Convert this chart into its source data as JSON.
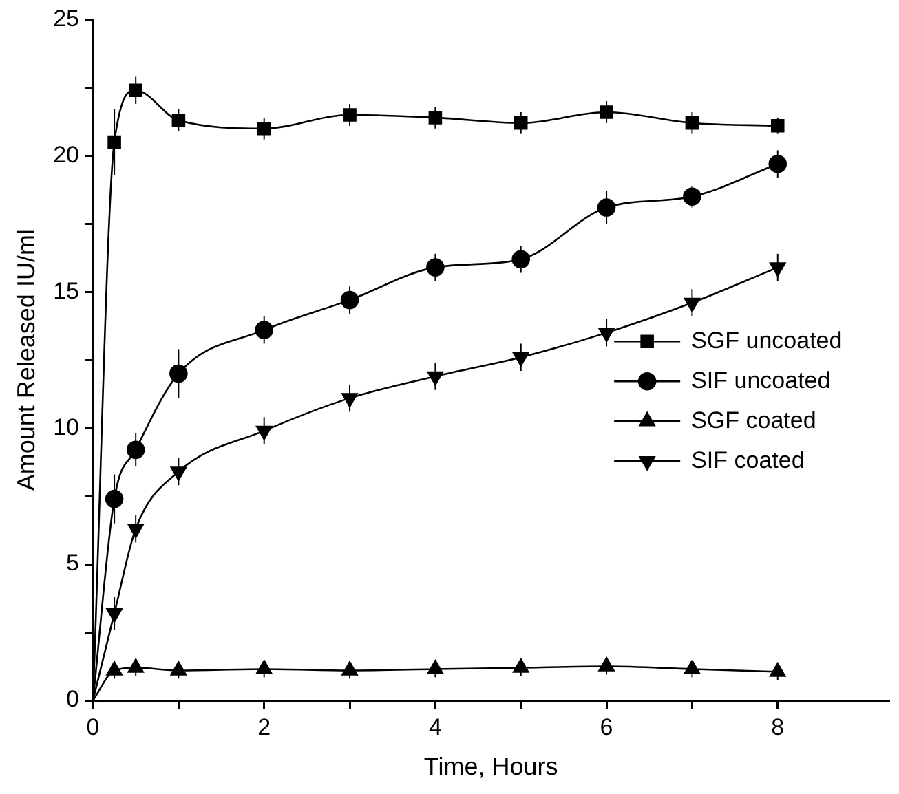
{
  "chart_data": {
    "type": "line",
    "xlabel": "Time, Hours",
    "ylabel": "Amount Released IU/ml",
    "x": [
      0,
      0.25,
      0.5,
      1,
      2,
      3,
      4,
      5,
      6,
      7,
      8
    ],
    "xlim": [
      0,
      9.3
    ],
    "xticks": [
      0,
      {
        "value": 1,
        "label": null
      },
      2,
      {
        "value": 3,
        "label": null
      },
      4,
      {
        "value": 5,
        "label": null
      },
      6,
      {
        "value": 7,
        "label": null
      },
      8
    ],
    "ylim": [
      0,
      25
    ],
    "yticks": [
      0,
      {
        "value": 2.5,
        "label": null
      },
      5,
      {
        "value": 7.5,
        "label": null
      },
      10,
      {
        "value": 12.5,
        "label": null
      },
      15,
      {
        "value": 17.5,
        "label": null
      },
      20,
      {
        "value": 22.5,
        "label": null
      },
      25
    ],
    "grid": false,
    "legend": "right",
    "line_style": "solid",
    "series": [
      {
        "name": "SGF uncoated",
        "color": "#000000",
        "marker": "square",
        "values": [
          0,
          20.5,
          22.4,
          21.3,
          21.0,
          21.5,
          21.4,
          21.2,
          21.6,
          21.2,
          21.1
        ],
        "errors": [
          null,
          1.2,
          0.5,
          0.4,
          0.4,
          0.4,
          0.4,
          0.4,
          0.4,
          0.4,
          0.3
        ]
      },
      {
        "name": "SIF uncoated",
        "color": "#000000",
        "marker": "circle",
        "values": [
          0,
          7.4,
          9.2,
          12.0,
          13.6,
          14.7,
          15.9,
          16.2,
          18.1,
          18.5,
          19.7
        ],
        "errors": [
          null,
          0.9,
          0.6,
          0.9,
          0.5,
          0.5,
          0.5,
          0.5,
          0.6,
          0.4,
          0.5
        ]
      },
      {
        "name": "SGF coated",
        "color": "#000000",
        "marker": "triangle",
        "values": [
          0,
          1.1,
          1.2,
          1.1,
          1.15,
          1.1,
          1.15,
          1.2,
          1.25,
          1.15,
          1.05
        ],
        "errors": [
          null,
          0.3,
          0.3,
          0.3,
          0.3,
          0.3,
          0.3,
          0.3,
          0.3,
          0.3,
          0.3
        ]
      },
      {
        "name": "SIF coated",
        "color": "#000000",
        "marker": "triangle-down",
        "values": [
          0,
          3.2,
          6.3,
          8.4,
          9.9,
          11.1,
          11.9,
          12.6,
          13.5,
          14.6,
          15.9
        ],
        "errors": [
          null,
          0.6,
          0.5,
          0.5,
          0.5,
          0.5,
          0.5,
          0.5,
          0.5,
          0.5,
          0.5
        ]
      }
    ]
  }
}
